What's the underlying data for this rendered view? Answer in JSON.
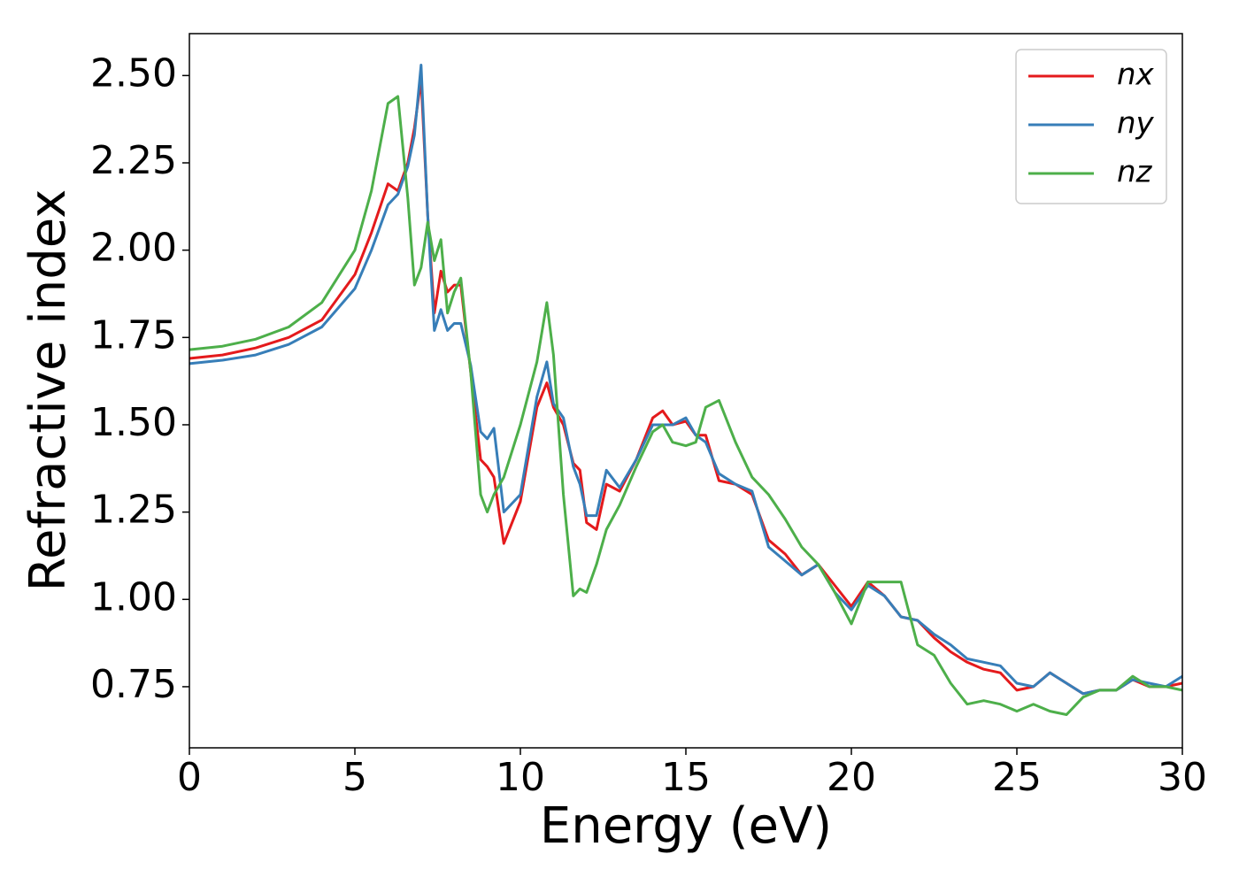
{
  "chart_data": {
    "type": "line",
    "xlabel": "Energy (eV)",
    "ylabel": "Refractive index",
    "x": [
      0,
      1,
      2,
      3,
      4,
      5,
      5.5,
      6,
      6.3,
      6.6,
      6.8,
      7.0,
      7.2,
      7.4,
      7.6,
      7.8,
      8.0,
      8.2,
      8.5,
      8.8,
      9.0,
      9.2,
      9.5,
      10,
      10.5,
      10.8,
      11,
      11.3,
      11.6,
      11.8,
      12,
      12.3,
      12.6,
      13,
      13.5,
      14,
      14.3,
      14.6,
      15,
      15.3,
      15.6,
      16,
      16.5,
      17,
      17.5,
      18,
      18.5,
      19,
      19.5,
      20,
      20.5,
      21,
      21.5,
      22,
      22.5,
      23,
      23.5,
      24,
      24.5,
      25,
      25.5,
      26,
      26.5,
      27,
      27.5,
      28,
      28.5,
      29,
      29.5,
      30
    ],
    "series": [
      {
        "name": "nx",
        "color": "#e41a1c",
        "values": [
          1.69,
          1.7,
          1.72,
          1.75,
          1.8,
          1.93,
          2.05,
          2.19,
          2.17,
          2.25,
          2.35,
          2.49,
          2.1,
          1.82,
          1.94,
          1.88,
          1.9,
          1.9,
          1.65,
          1.4,
          1.38,
          1.35,
          1.16,
          1.28,
          1.55,
          1.62,
          1.55,
          1.5,
          1.39,
          1.37,
          1.22,
          1.2,
          1.33,
          1.31,
          1.4,
          1.52,
          1.54,
          1.5,
          1.51,
          1.47,
          1.47,
          1.34,
          1.33,
          1.3,
          1.17,
          1.13,
          1.07,
          1.1,
          1.04,
          0.98,
          1.05,
          1.01,
          0.95,
          0.94,
          0.89,
          0.85,
          0.82,
          0.8,
          0.79,
          0.74,
          0.75,
          0.79,
          0.76,
          0.73,
          0.74,
          0.74,
          0.77,
          0.75,
          0.75,
          0.76
        ]
      },
      {
        "name": "ny",
        "color": "#377eb8",
        "values": [
          1.675,
          1.685,
          1.7,
          1.73,
          1.78,
          1.89,
          2.0,
          2.13,
          2.16,
          2.24,
          2.33,
          2.53,
          2.1,
          1.77,
          1.83,
          1.77,
          1.79,
          1.79,
          1.67,
          1.48,
          1.46,
          1.49,
          1.25,
          1.3,
          1.58,
          1.68,
          1.56,
          1.52,
          1.38,
          1.33,
          1.24,
          1.24,
          1.37,
          1.32,
          1.4,
          1.5,
          1.5,
          1.5,
          1.52,
          1.47,
          1.45,
          1.36,
          1.33,
          1.31,
          1.15,
          1.11,
          1.07,
          1.1,
          1.02,
          0.97,
          1.04,
          1.01,
          0.95,
          0.94,
          0.9,
          0.87,
          0.83,
          0.82,
          0.81,
          0.76,
          0.75,
          0.79,
          0.76,
          0.73,
          0.74,
          0.74,
          0.77,
          0.76,
          0.75,
          0.78
        ]
      },
      {
        "name": "nz",
        "color": "#4daf4a",
        "values": [
          1.715,
          1.725,
          1.745,
          1.78,
          1.85,
          2.0,
          2.17,
          2.42,
          2.44,
          2.15,
          1.9,
          1.95,
          2.08,
          1.97,
          2.03,
          1.82,
          1.88,
          1.92,
          1.65,
          1.3,
          1.25,
          1.3,
          1.35,
          1.5,
          1.68,
          1.85,
          1.7,
          1.3,
          1.01,
          1.03,
          1.02,
          1.1,
          1.2,
          1.27,
          1.38,
          1.48,
          1.5,
          1.45,
          1.44,
          1.45,
          1.55,
          1.57,
          1.45,
          1.35,
          1.3,
          1.23,
          1.15,
          1.1,
          1.02,
          0.93,
          1.05,
          1.05,
          1.05,
          0.87,
          0.84,
          0.76,
          0.7,
          0.71,
          0.7,
          0.68,
          0.7,
          0.68,
          0.67,
          0.72,
          0.74,
          0.74,
          0.78,
          0.75,
          0.75,
          0.74
        ]
      }
    ],
    "xlim": [
      0,
      30
    ],
    "ylim": [
      0.575,
      2.62
    ],
    "xticks": [
      0,
      5,
      10,
      15,
      20,
      25,
      30
    ],
    "yticks": [
      0.75,
      {
        "value": 1,
        "label": "1.00"
      },
      1.25,
      {
        "value": 1.5,
        "label": "1.50"
      },
      1.75,
      {
        "value": 2,
        "label": "2.00"
      },
      2.25,
      {
        "value": 2.5,
        "label": "2.50"
      }
    ],
    "legend": "upper right",
    "grid": false
  }
}
